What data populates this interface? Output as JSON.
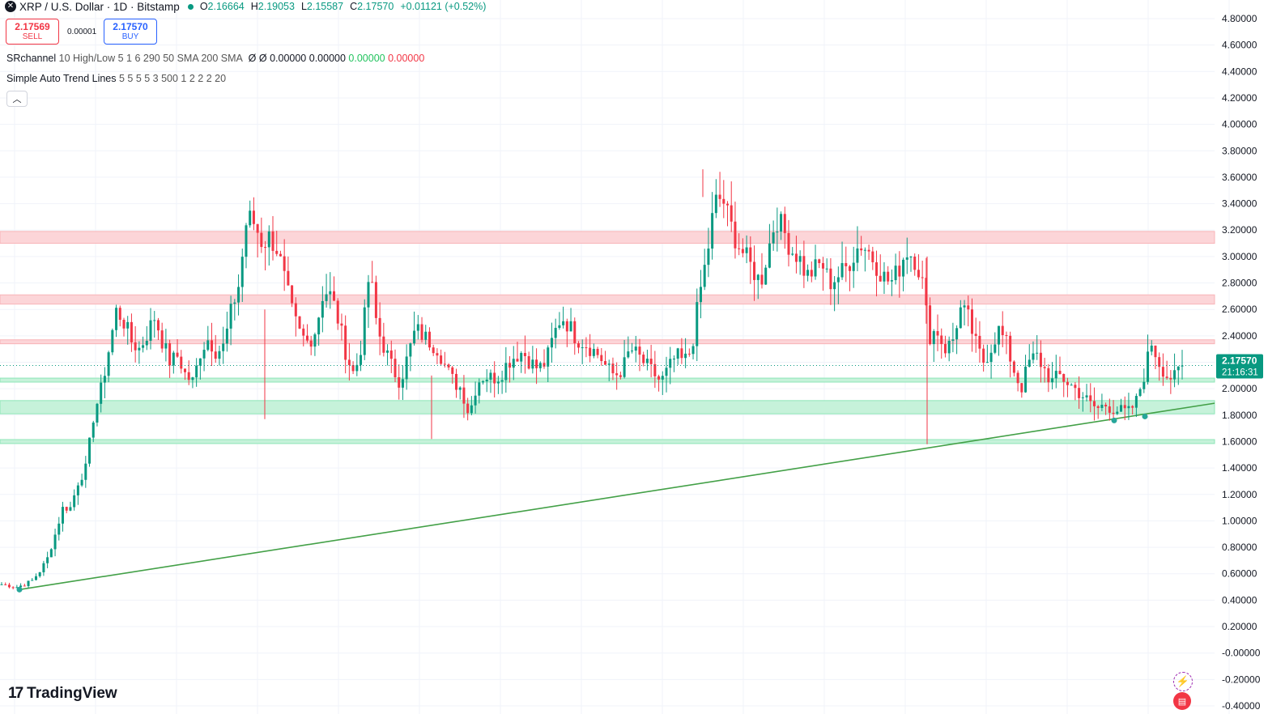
{
  "header": {
    "symbol_icon": "xrp-icon",
    "title": "XRP / U.S. Dollar · 1D · Bitstamp",
    "ohlc": [
      {
        "label": "O",
        "value": "2.16664"
      },
      {
        "label": "H",
        "value": "2.19053"
      },
      {
        "label": "L",
        "value": "2.15587"
      },
      {
        "label": "C",
        "value": "2.17570"
      }
    ],
    "change": "+0.01121 (+0.52%)"
  },
  "trade": {
    "sell_price": "2.17569",
    "sell_label": "SELL",
    "spread": "0.00001",
    "buy_price": "2.17570",
    "buy_label": "BUY"
  },
  "indicators": [
    {
      "name": "SRchannel",
      "args": "10 High/Low 5 1 6 290 50 SMA 200 SMA",
      "symbols": "Ø Ø",
      "values": [
        "0.00000",
        "0.00000",
        "0.00000",
        "0.00000"
      ]
    },
    {
      "name": "Simple Auto Trend Lines",
      "args": "5 5 5 5 3 500 1 2 2 2 20"
    }
  ],
  "collapse_icon": "chevron-up-icon",
  "logo": {
    "mark": "17",
    "text": "TradingView"
  },
  "price_axis": {
    "ticks": [
      "4.80000",
      "4.60000",
      "4.40000",
      "4.20000",
      "4.00000",
      "3.80000",
      "3.60000",
      "3.40000",
      "3.20000",
      "3.00000",
      "2.80000",
      "2.60000",
      "2.40000",
      "2.20000",
      "2.00000",
      "1.80000",
      "1.60000",
      "1.40000",
      "1.20000",
      "1.00000",
      "0.80000",
      "0.60000",
      "0.40000",
      "0.20000",
      "-0.00000",
      "-0.20000",
      "-0.40000"
    ],
    "last_price": "2.17570",
    "countdown": "21:16:31"
  },
  "colors": {
    "up": "#089981",
    "down": "#f23645",
    "resistance": "#f8b4b8",
    "support": "#8ee6b7",
    "trendline": "#43a047",
    "grid": "#f0f3fa"
  },
  "chart_data": {
    "type": "candlestick",
    "ylim": [
      -0.4,
      4.8
    ],
    "resistance_zones": [
      [
        3.1,
        3.19
      ],
      [
        2.64,
        2.71
      ],
      [
        2.34,
        2.37
      ]
    ],
    "support_zones": [
      [
        2.05,
        2.08
      ],
      [
        1.81,
        1.91
      ],
      [
        1.585,
        1.615
      ]
    ],
    "trendline": {
      "start": 0.48,
      "end": 1.89
    },
    "pivots": [
      0.48,
      1.76,
      1.79
    ],
    "close_path": [
      0.52,
      0.51,
      0.5,
      0.52,
      0.55,
      0.62,
      0.72,
      0.9,
      1.1,
      1.1,
      1.3,
      1.4,
      1.8,
      2.0,
      2.3,
      2.6,
      2.5,
      2.35,
      2.3,
      2.42,
      2.55,
      2.35,
      2.2,
      2.25,
      2.1,
      2.05,
      2.3,
      2.38,
      2.28,
      2.32,
      2.6,
      2.8,
      3.3,
      3.25,
      3.1,
      3.15,
      3.05,
      2.8,
      2.55,
      2.4,
      2.35,
      2.45,
      2.75,
      2.7,
      2.5,
      2.25,
      2.1,
      2.35,
      2.9,
      2.45,
      2.3,
      2.15,
      2.05,
      2.25,
      2.45,
      2.4,
      2.35,
      2.3,
      2.15,
      2.05,
      2.0,
      1.8,
      2.05,
      2.1,
      2.08,
      2.1,
      2.2,
      2.25,
      2.28,
      2.2,
      2.15,
      2.2,
      2.4,
      2.55,
      2.48,
      2.38,
      2.35,
      2.3,
      2.25,
      2.15,
      2.1,
      2.15,
      2.3,
      2.25,
      2.18,
      2.12,
      2.05,
      2.15,
      2.25,
      2.2,
      2.3,
      2.7,
      3.0,
      3.4,
      3.45,
      3.25,
      3.1,
      3.0,
      2.9,
      2.8,
      3.05,
      3.3,
      3.2,
      3.05,
      3.0,
      2.85,
      2.9,
      2.95,
      2.8,
      2.85,
      2.9,
      3.0,
      3.1,
      3.05,
      2.95,
      2.85,
      2.8,
      2.9,
      3.05,
      3.0,
      2.85,
      2.4,
      2.45,
      2.3,
      2.35,
      2.6,
      2.55,
      2.35,
      2.2,
      2.3,
      2.45,
      2.35,
      2.15,
      2.0,
      2.2,
      2.25,
      2.15,
      2.05,
      2.1,
      2.05,
      2.0,
      1.95,
      1.88,
      1.85,
      1.88,
      1.85,
      1.83,
      1.82,
      1.9,
      2.1,
      2.35,
      2.2,
      2.1,
      2.08,
      2.1757
    ]
  }
}
